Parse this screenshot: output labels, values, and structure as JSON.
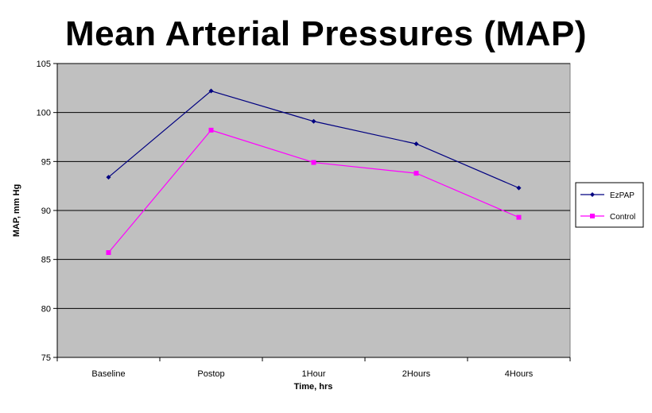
{
  "chart_data": {
    "type": "line",
    "title": "Mean Arterial Pressures (MAP)",
    "xlabel": "Time, hrs",
    "ylabel": "MAP, mm Hg",
    "categories": [
      "Baseline",
      "Postop",
      "1Hour",
      "2Hours",
      "4Hours"
    ],
    "ylim": [
      75,
      105
    ],
    "yticks": [
      75,
      80,
      85,
      90,
      95,
      100,
      105
    ],
    "grid": true,
    "legend_position": "right",
    "plot_background": "#c0c0c0",
    "series": [
      {
        "name": "EzPAP",
        "color": "#000080",
        "marker": "diamond",
        "values": [
          93.4,
          102.2,
          99.1,
          96.8,
          92.3
        ]
      },
      {
        "name": "Control",
        "color": "#ff00ff",
        "marker": "square",
        "values": [
          85.7,
          98.2,
          94.9,
          93.8,
          89.3
        ]
      }
    ]
  }
}
